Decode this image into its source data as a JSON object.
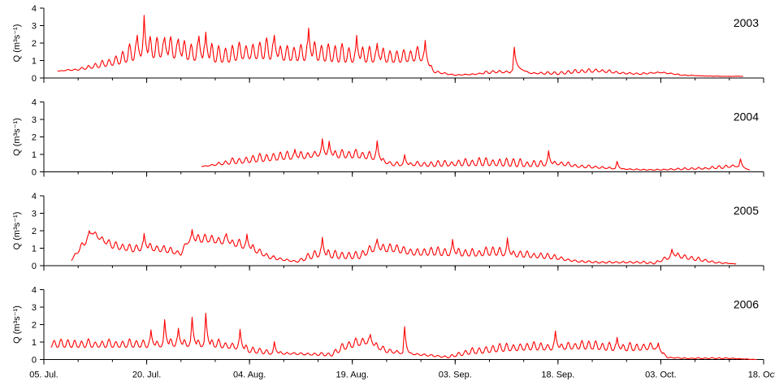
{
  "chart_data": [
    {
      "type": "line",
      "year_label": "2003",
      "ylabel": "Q (m³s⁻¹)",
      "ylim": [
        0,
        4
      ],
      "yticks": [
        0,
        1,
        2,
        3,
        4
      ],
      "xlim": [
        "2003-07-05",
        "2003-10-18"
      ],
      "data_span": [
        "2003-07-07",
        "2003-10-15"
      ],
      "series": [
        {
          "color": "#ff0000",
          "x": [
            "2003-07-07",
            "2003-07-10",
            "2003-07-13",
            "2003-07-16",
            "2003-07-18",
            "2003-07-20",
            "2003-07-22",
            "2003-07-25",
            "2003-07-27",
            "2003-07-29",
            "2003-08-01",
            "2003-08-03",
            "2003-08-06",
            "2003-08-09",
            "2003-08-11",
            "2003-08-14",
            "2003-08-17",
            "2003-08-20",
            "2003-08-23",
            "2003-08-26",
            "2003-08-29",
            "2003-08-31",
            "2003-09-03",
            "2003-09-06",
            "2003-09-09",
            "2003-09-11",
            "2003-09-12",
            "2003-09-14",
            "2003-09-18",
            "2003-09-21",
            "2003-09-24",
            "2003-09-27",
            "2003-09-30",
            "2003-10-03",
            "2003-10-06",
            "2003-10-09",
            "2003-10-12",
            "2003-10-15"
          ],
          "base": [
            0.4,
            0.45,
            0.6,
            0.8,
            1.0,
            1.1,
            1.2,
            1.1,
            1.0,
            0.9,
            0.9,
            1.1,
            1.1,
            1.0,
            1.0,
            1.0,
            0.9,
            0.9,
            0.9,
            0.9,
            1.0,
            0.3,
            0.15,
            0.2,
            0.3,
            0.3,
            0.6,
            0.25,
            0.2,
            0.3,
            0.35,
            0.25,
            0.2,
            0.3,
            0.15,
            0.12,
            0.1,
            0.1
          ],
          "amp": [
            0.0,
            0.1,
            0.3,
            0.6,
            0.9,
            1.0,
            1.0,
            1.0,
            1.0,
            1.0,
            1.0,
            1.0,
            1.0,
            0.9,
            0.9,
            0.9,
            0.9,
            0.8,
            0.8,
            0.8,
            0.7,
            0.1,
            0.05,
            0.05,
            0.2,
            0.1,
            0.0,
            0.05,
            0.2,
            0.2,
            0.2,
            0.1,
            0.1,
            0.05,
            0.05,
            0.0,
            0.0,
            0.0
          ],
          "peaks": [
            {
              "x": "2003-07-18",
              "y": 2.6
            },
            {
              "x": "2003-07-19",
              "y": 3.85
            },
            {
              "x": "2003-07-22",
              "y": 2.45
            },
            {
              "x": "2003-07-24",
              "y": 2.35
            },
            {
              "x": "2003-07-27",
              "y": 2.55
            },
            {
              "x": "2003-07-28",
              "y": 2.8
            },
            {
              "x": "2003-08-07",
              "y": 2.6
            },
            {
              "x": "2003-08-12",
              "y": 3.05
            },
            {
              "x": "2003-08-19",
              "y": 2.6
            },
            {
              "x": "2003-08-22",
              "y": 2.1
            },
            {
              "x": "2003-08-29",
              "y": 2.3
            },
            {
              "x": "2003-09-11",
              "y": 1.9
            }
          ]
        }
      ]
    },
    {
      "type": "line",
      "year_label": "2004",
      "ylabel": "Q (m³s⁻¹)",
      "ylim": [
        0,
        4
      ],
      "yticks": [
        0,
        1,
        2,
        3,
        4
      ],
      "xlim": [
        "2004-07-05",
        "2004-10-18"
      ],
      "data_span": [
        "2004-07-28",
        "2004-10-16"
      ],
      "series": [
        {
          "color": "#ff0000",
          "x": [
            "2004-07-28",
            "2004-07-31",
            "2004-08-03",
            "2004-08-06",
            "2004-08-09",
            "2004-08-12",
            "2004-08-14",
            "2004-08-17",
            "2004-08-20",
            "2004-08-22",
            "2004-08-25",
            "2004-08-28",
            "2004-08-31",
            "2004-09-03",
            "2004-09-06",
            "2004-09-09",
            "2004-09-12",
            "2004-09-15",
            "2004-09-18",
            "2004-09-21",
            "2004-09-24",
            "2004-09-27",
            "2004-09-30",
            "2004-10-03",
            "2004-10-06",
            "2004-10-09",
            "2004-10-12",
            "2004-10-14",
            "2004-10-16"
          ],
          "base": [
            0.3,
            0.4,
            0.5,
            0.6,
            0.7,
            0.75,
            0.9,
            0.8,
            0.8,
            0.7,
            0.35,
            0.35,
            0.3,
            0.35,
            0.35,
            0.35,
            0.3,
            0.3,
            0.4,
            0.25,
            0.2,
            0.15,
            0.1,
            0.1,
            0.12,
            0.15,
            0.2,
            0.3,
            0.1
          ],
          "amp": [
            0.0,
            0.2,
            0.4,
            0.4,
            0.4,
            0.4,
            0.4,
            0.4,
            0.4,
            0.4,
            0.2,
            0.2,
            0.3,
            0.3,
            0.4,
            0.4,
            0.4,
            0.3,
            0.2,
            0.2,
            0.1,
            0.05,
            0.05,
            0.05,
            0.1,
            0.1,
            0.15,
            0.1,
            0.0
          ],
          "peaks": [
            {
              "x": "2004-08-10",
              "y": 1.35
            },
            {
              "x": "2004-08-14",
              "y": 2.0
            },
            {
              "x": "2004-08-15",
              "y": 1.85
            },
            {
              "x": "2004-08-22",
              "y": 1.9
            },
            {
              "x": "2004-08-26",
              "y": 1.05
            },
            {
              "x": "2004-09-16",
              "y": 1.3
            },
            {
              "x": "2004-09-26",
              "y": 0.65
            },
            {
              "x": "2004-10-14",
              "y": 0.8
            }
          ]
        }
      ]
    },
    {
      "type": "line",
      "year_label": "2005",
      "ylabel": "Q (m³s⁻¹)",
      "ylim": [
        0,
        4
      ],
      "yticks": [
        0,
        1,
        2,
        3,
        4
      ],
      "xlim": [
        "2005-07-05",
        "2005-10-18"
      ],
      "data_span": [
        "2005-07-09",
        "2005-10-14"
      ],
      "series": [
        {
          "color": "#ff0000",
          "x": [
            "2005-07-09",
            "2005-07-11",
            "2005-07-12",
            "2005-07-15",
            "2005-07-18",
            "2005-07-20",
            "2005-07-23",
            "2005-07-25",
            "2005-07-26",
            "2005-07-29",
            "2005-08-01",
            "2005-08-04",
            "2005-08-07",
            "2005-08-09",
            "2005-08-11",
            "2005-08-14",
            "2005-08-17",
            "2005-08-20",
            "2005-08-22",
            "2005-08-25",
            "2005-08-28",
            "2005-08-31",
            "2005-09-03",
            "2005-09-06",
            "2005-09-09",
            "2005-09-12",
            "2005-09-15",
            "2005-09-18",
            "2005-09-21",
            "2005-09-24",
            "2005-09-27",
            "2005-09-30",
            "2005-10-02",
            "2005-10-05",
            "2005-10-08",
            "2005-10-11",
            "2005-10-14"
          ],
          "base": [
            0.3,
            1.2,
            1.8,
            1.0,
            0.8,
            0.9,
            0.75,
            0.6,
            1.3,
            1.35,
            1.2,
            0.9,
            0.4,
            0.3,
            0.2,
            0.5,
            0.4,
            0.4,
            0.8,
            0.8,
            0.6,
            0.6,
            0.55,
            0.55,
            0.6,
            0.5,
            0.45,
            0.35,
            0.2,
            0.15,
            0.15,
            0.15,
            0.1,
            0.5,
            0.3,
            0.15,
            0.1
          ],
          "amp": [
            0.0,
            0.4,
            0.2,
            0.4,
            0.4,
            0.4,
            0.3,
            0.2,
            0.4,
            0.4,
            0.4,
            0.4,
            0.2,
            0.1,
            0.1,
            0.5,
            0.4,
            0.4,
            0.5,
            0.4,
            0.4,
            0.4,
            0.4,
            0.4,
            0.4,
            0.4,
            0.3,
            0.2,
            0.1,
            0.1,
            0.1,
            0.1,
            0.1,
            0.3,
            0.2,
            0.1,
            0.0
          ],
          "peaks": [
            {
              "x": "2005-07-11",
              "y": 2.05
            },
            {
              "x": "2005-07-19",
              "y": 1.95
            },
            {
              "x": "2005-07-26",
              "y": 2.15
            },
            {
              "x": "2005-07-31",
              "y": 1.9
            },
            {
              "x": "2005-08-03",
              "y": 1.9
            },
            {
              "x": "2005-08-14",
              "y": 1.75
            },
            {
              "x": "2005-08-22",
              "y": 1.6
            },
            {
              "x": "2005-09-02",
              "y": 1.6
            },
            {
              "x": "2005-09-10",
              "y": 1.7
            },
            {
              "x": "2005-10-04",
              "y": 1.0
            }
          ]
        }
      ]
    },
    {
      "type": "line",
      "year_label": "2006",
      "ylabel": "Q (m³s⁻¹)",
      "ylim": [
        0,
        4
      ],
      "yticks": [
        0,
        1,
        2,
        3,
        4
      ],
      "xlim": [
        "2006-07-05",
        "2006-10-18"
      ],
      "data_span": [
        "2006-07-06",
        "2006-10-17"
      ],
      "series": [
        {
          "color": "#ff0000",
          "x": [
            "2006-07-06",
            "2006-07-09",
            "2006-07-12",
            "2006-07-15",
            "2006-07-18",
            "2006-07-21",
            "2006-07-24",
            "2006-07-27",
            "2006-07-30",
            "2006-08-02",
            "2006-08-04",
            "2006-08-07",
            "2006-08-10",
            "2006-08-13",
            "2006-08-16",
            "2006-08-18",
            "2006-08-21",
            "2006-08-24",
            "2006-08-27",
            "2006-08-30",
            "2006-09-02",
            "2006-09-05",
            "2006-09-08",
            "2006-09-11",
            "2006-09-14",
            "2006-09-17",
            "2006-09-20",
            "2006-09-23",
            "2006-09-26",
            "2006-09-29",
            "2006-10-02",
            "2006-10-04",
            "2006-10-07",
            "2006-10-10",
            "2006-10-13",
            "2006-10-17"
          ],
          "base": [
            0.7,
            0.7,
            0.7,
            0.7,
            0.7,
            0.7,
            0.75,
            0.75,
            0.7,
            0.6,
            0.4,
            0.3,
            0.3,
            0.25,
            0.2,
            0.6,
            0.9,
            0.4,
            0.3,
            0.2,
            0.1,
            0.3,
            0.4,
            0.5,
            0.55,
            0.55,
            0.6,
            0.6,
            0.5,
            0.5,
            0.6,
            0.1,
            0.05,
            0.05,
            0.05,
            0.0
          ],
          "amp": [
            0.4,
            0.4,
            0.4,
            0.4,
            0.4,
            0.4,
            0.4,
            0.4,
            0.4,
            0.4,
            0.3,
            0.2,
            0.1,
            0.1,
            0.2,
            0.4,
            0.4,
            0.2,
            0.1,
            0.1,
            0.1,
            0.3,
            0.4,
            0.4,
            0.4,
            0.4,
            0.4,
            0.4,
            0.4,
            0.4,
            0.3,
            0.05,
            0.05,
            0.05,
            0.05,
            0.0
          ],
          "peaks": [
            {
              "x": "2006-07-20",
              "y": 1.8
            },
            {
              "x": "2006-07-22",
              "y": 2.45
            },
            {
              "x": "2006-07-24",
              "y": 1.9
            },
            {
              "x": "2006-07-26",
              "y": 2.6
            },
            {
              "x": "2006-07-28",
              "y": 2.85
            },
            {
              "x": "2006-08-02",
              "y": 1.85
            },
            {
              "x": "2006-08-07",
              "y": 1.1
            },
            {
              "x": "2006-08-21",
              "y": 1.5
            },
            {
              "x": "2006-08-26",
              "y": 2.05
            },
            {
              "x": "2006-09-17",
              "y": 1.75
            },
            {
              "x": "2006-09-26",
              "y": 1.35
            },
            {
              "x": "2006-10-02",
              "y": 1.0
            }
          ]
        }
      ]
    }
  ],
  "x_tick_labels": [
    "05. Jul.",
    "20. Jul.",
    "04. Aug.",
    "19. Aug.",
    "03. Sep.",
    "18. Sep.",
    "03. Oct.",
    "18. Oct."
  ],
  "x_tick_dates": [
    "07-05",
    "07-20",
    "08-04",
    "08-19",
    "09-03",
    "09-18",
    "10-03",
    "10-18"
  ],
  "minor_tick_days": 5
}
